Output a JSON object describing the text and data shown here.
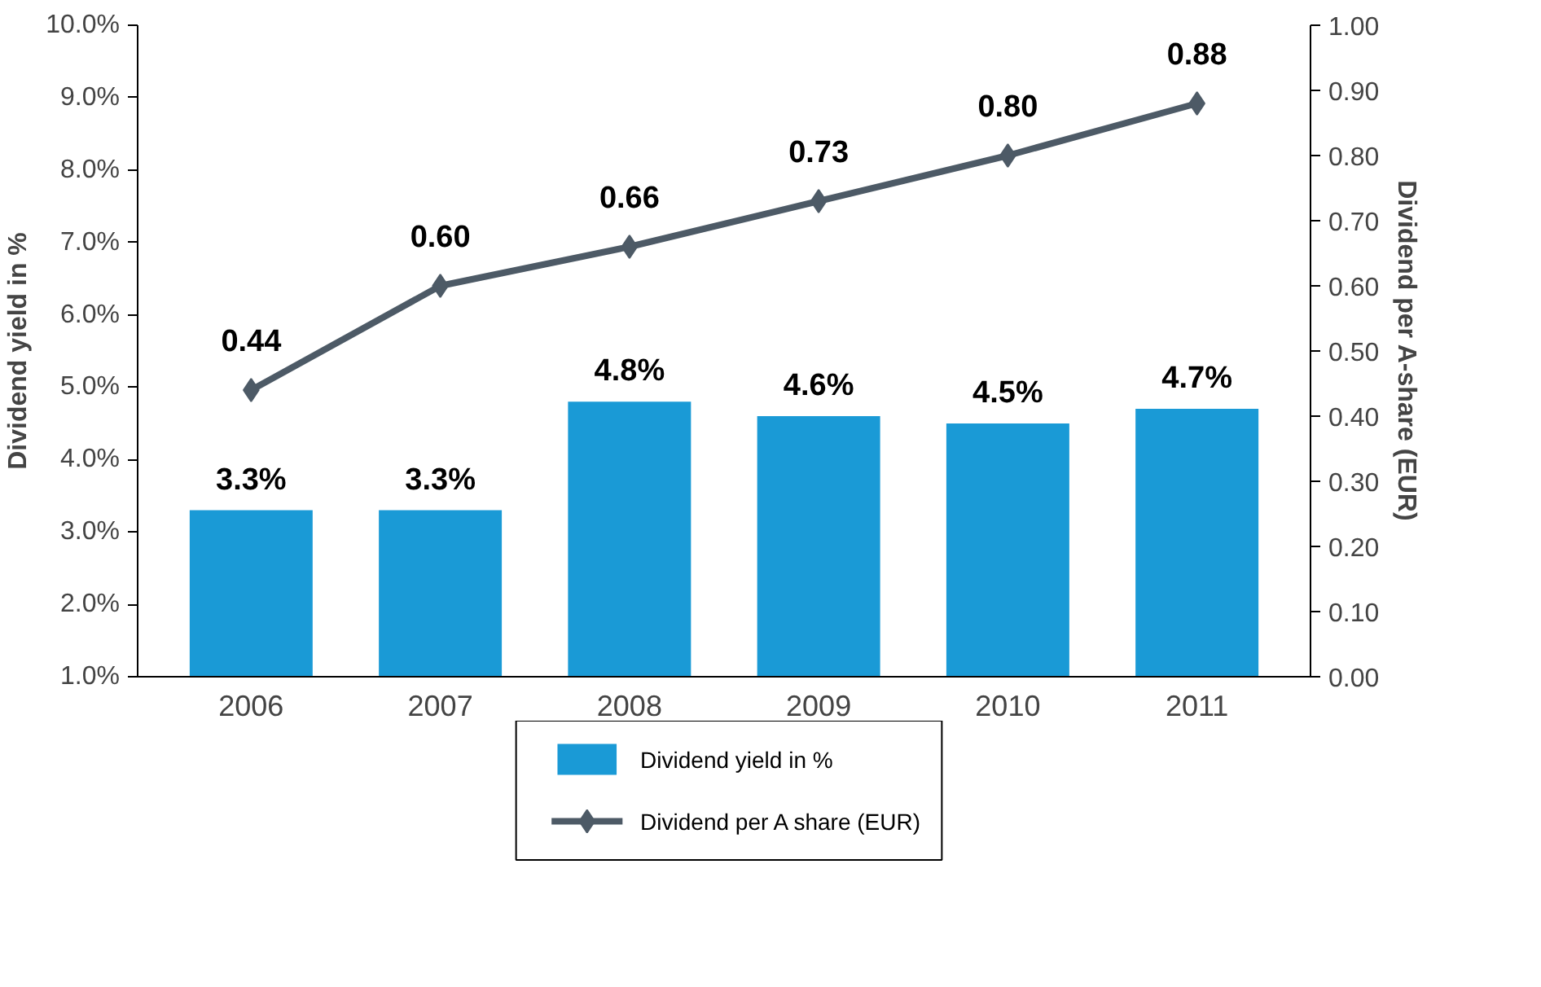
{
  "chart_data": {
    "type": "bar",
    "ylabel": "Dividend yield in %",
    "y2label": "Dividend per A-share (EUR)",
    "categories": [
      "2006",
      "2007",
      "2008",
      "2009",
      "2010",
      "2011"
    ],
    "series": [
      {
        "name": "Dividend yield in %",
        "color": "#1a9ad6",
        "values": [
          3.3,
          3.3,
          4.8,
          4.6,
          4.5,
          4.7
        ],
        "value_labels": [
          "3.3%",
          "3.3%",
          "4.8%",
          "4.6%",
          "4.5%",
          "4.7%"
        ]
      },
      {
        "name": "Dividend per A share (EUR)",
        "type": "line",
        "axis": "y2",
        "color": "#4d5a66",
        "marker": "diamond",
        "line_style": "solid",
        "values": [
          0.44,
          0.6,
          0.66,
          0.73,
          0.8,
          0.88
        ],
        "value_labels": [
          "0.44",
          "0.60",
          "0.66",
          "0.73",
          "0.80",
          "0.88"
        ]
      }
    ],
    "ylim": [
      1.0,
      10.0
    ],
    "yticks": [
      {
        "value": 1,
        "label": "1.0%"
      },
      {
        "value": 2,
        "label": "2.0%"
      },
      {
        "value": 3,
        "label": "3.0%"
      },
      {
        "value": 4,
        "label": "4.0%"
      },
      {
        "value": 5,
        "label": "5.0%"
      },
      {
        "value": 6,
        "label": "6.0%"
      },
      {
        "value": 7,
        "label": "7.0%"
      },
      {
        "value": 8,
        "label": "8.0%"
      },
      {
        "value": 9,
        "label": "9.0%"
      },
      {
        "value": 10,
        "label": "10.0%"
      }
    ],
    "y2lim": [
      0.0,
      1.0
    ],
    "y2ticks": [
      {
        "value": 0,
        "label": "0.00"
      },
      {
        "value": 0.1,
        "label": "0.10"
      },
      {
        "value": 0.2,
        "label": "0.20"
      },
      {
        "value": 0.3,
        "label": "0.30"
      },
      {
        "value": 0.4,
        "label": "0.40"
      },
      {
        "value": 0.5,
        "label": "0.50"
      },
      {
        "value": 0.6,
        "label": "0.60"
      },
      {
        "value": 0.7,
        "label": "0.70"
      },
      {
        "value": 0.8,
        "label": "0.80"
      },
      {
        "value": 0.9,
        "label": "0.90"
      },
      {
        "value": 1,
        "label": "1.00"
      }
    ],
    "grid": false,
    "legend": "bottom"
  }
}
